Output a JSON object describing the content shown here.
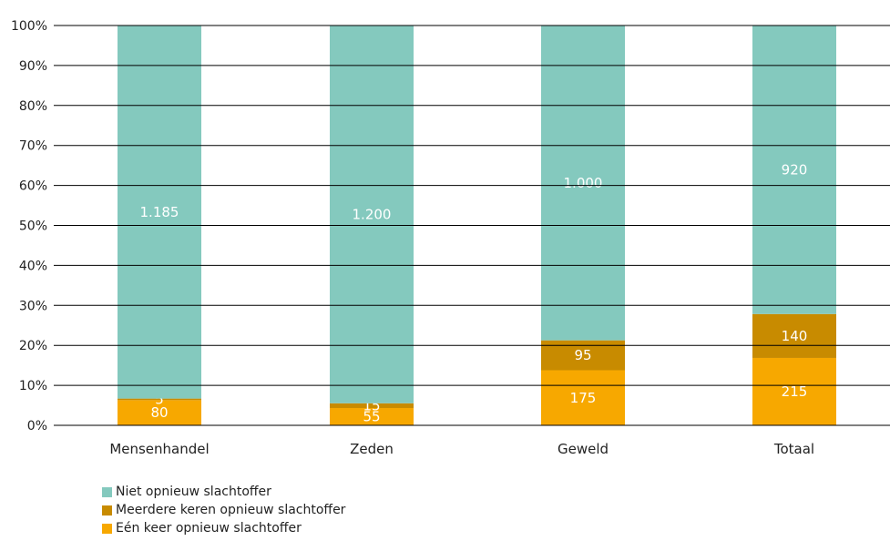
{
  "chart_data": {
    "type": "bar",
    "stacked": true,
    "normalized": true,
    "categories": [
      "Mensenhandel",
      "Zeden",
      "Geweld",
      "Totaal"
    ],
    "series": [
      {
        "name": "Eén keer opnieuw slachtoffer",
        "color": "#f7a800",
        "values": [
          80,
          55,
          175,
          215
        ]
      },
      {
        "name": "Meerdere keren opnieuw slachtoffer",
        "color": "#c88b00",
        "values": [
          5,
          15,
          95,
          140
        ]
      },
      {
        "name": "Niet opnieuw slachtoffer",
        "color": "#84c9be",
        "values": [
          1185,
          1200,
          1000,
          920
        ]
      }
    ],
    "data_labels": [
      [
        "80",
        "55",
        "175",
        "215"
      ],
      [
        "5",
        "15",
        "95",
        "140"
      ],
      [
        "1.185",
        "1.200",
        "1.000",
        "920"
      ]
    ],
    "y_ticks": [
      "0%",
      "10%",
      "20%",
      "30%",
      "40%",
      "50%",
      "60%",
      "70%",
      "80%",
      "90%",
      "100%"
    ],
    "ylim": [
      0,
      100
    ],
    "grid": true,
    "legend_position": "bottom-left",
    "legend_order": [
      "Niet opnieuw slachtoffer",
      "Meerdere keren opnieuw slachtoffer",
      "Eén keer opnieuw slachtoffer"
    ]
  }
}
